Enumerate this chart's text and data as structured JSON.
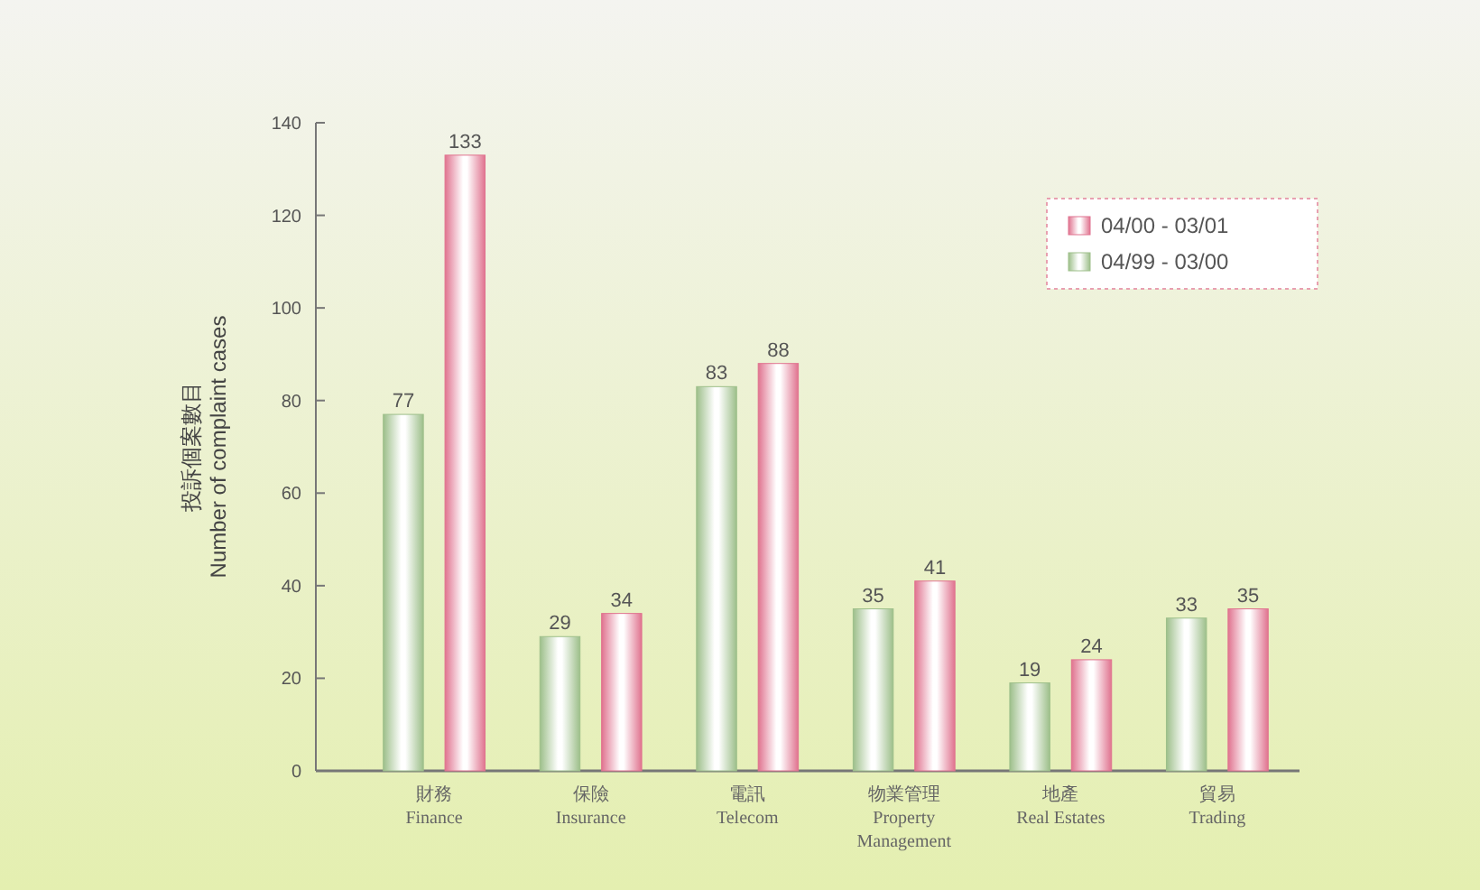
{
  "chart_data": {
    "type": "bar",
    "ylabel": "投訴個案數目\nNumber of complaint cases",
    "categories": [
      "財務\nFinance",
      "保險\nInsurance",
      "電訊\nTelecom",
      "物業管理\nProperty\nManagement",
      "地產\nReal Estates",
      "貿易\nTrading"
    ],
    "series": [
      {
        "name": "04/99 - 03/00",
        "color": "#9dbf8a",
        "values": [
          77,
          29,
          83,
          35,
          19,
          33
        ]
      },
      {
        "name": "04/00 - 03/01",
        "color": "#e0738f",
        "values": [
          133,
          34,
          88,
          41,
          24,
          35
        ]
      }
    ],
    "ylim": [
      0,
      140
    ],
    "yticks": [
      0,
      20,
      40,
      60,
      80,
      100,
      120,
      140
    ],
    "data_labels": true,
    "legend": "top right",
    "grid": false
  }
}
